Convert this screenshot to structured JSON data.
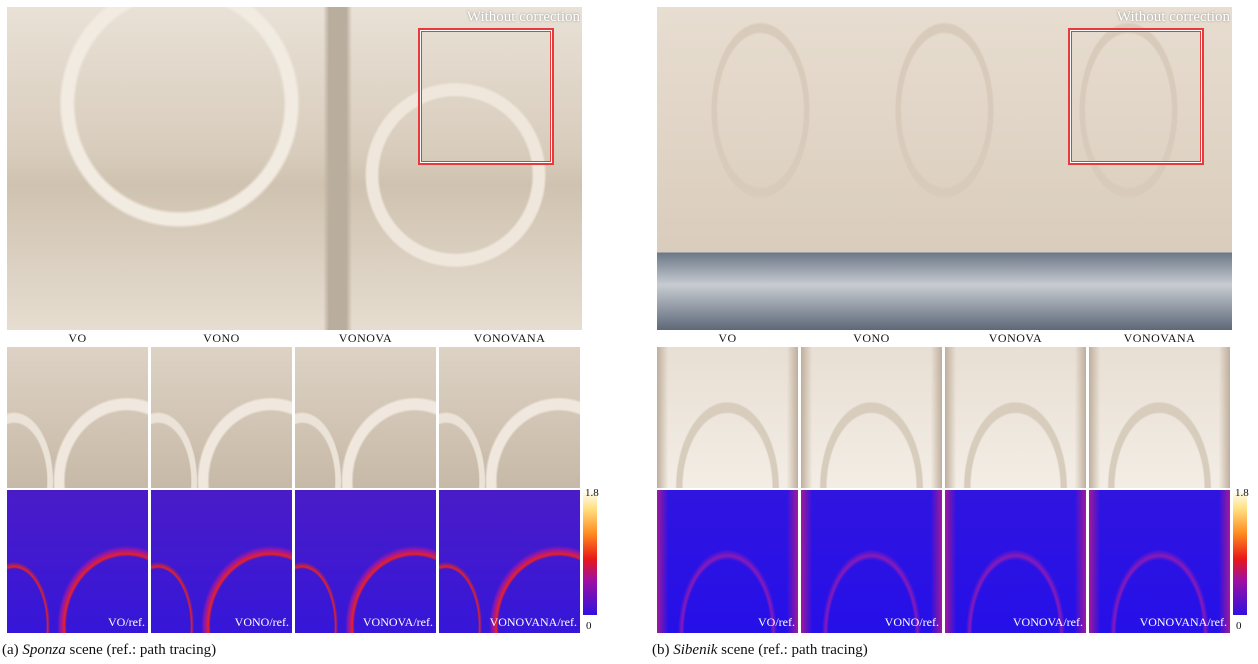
{
  "panels": [
    {
      "label": "(a)",
      "scene": "Sponza",
      "caption_rest": "scene (ref.: path tracing)",
      "overlay": "Without correction",
      "methods": [
        "VO",
        "VONO",
        "VONOVA",
        "VONOVANA"
      ],
      "error_labels": [
        "VO/ref.",
        "VONO/ref.",
        "VONOVA/ref.",
        "VONOVANA/ref."
      ],
      "colorbar": {
        "max": 1.8,
        "min": 0
      }
    },
    {
      "label": "(b)",
      "scene": "Sibenik",
      "caption_rest": "scene (ref.: path tracing)",
      "overlay": "Without correction",
      "methods": [
        "VO",
        "VONO",
        "VONOVA",
        "VONOVANA"
      ],
      "error_labels": [
        "VO/ref.",
        "VONO/ref.",
        "VONOVA/ref.",
        "VONOVANA/ref."
      ],
      "colorbar": {
        "max": 1.8,
        "min": 0
      }
    }
  ]
}
